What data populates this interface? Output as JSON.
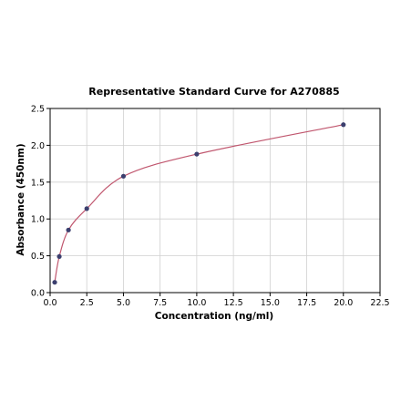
{
  "chart_data": {
    "type": "scatter",
    "title": "Representative Standard Curve for A270885",
    "xlabel": "Concentration (ng/ml)",
    "ylabel": "Absorbance (450nm)",
    "xlim": [
      0,
      22.5
    ],
    "ylim": [
      0,
      2.5
    ],
    "x_ticks": [
      "0.0",
      "2.5",
      "5.0",
      "7.5",
      "10.0",
      "12.5",
      "15.0",
      "17.5",
      "20.0",
      "22.5"
    ],
    "y_ticks": [
      "0.0",
      "0.5",
      "1.0",
      "1.5",
      "2.0",
      "2.5"
    ],
    "grid": true,
    "series": [
      {
        "x": [
          0.313,
          0.625,
          1.25,
          2.5,
          5.0,
          10.0,
          20.0
        ],
        "y": [
          0.14,
          0.49,
          0.85,
          1.14,
          1.58,
          1.88,
          2.28
        ],
        "fit_curve": true
      }
    ],
    "colors": {
      "points": "#3b3f6e",
      "curve": "#c0566e",
      "grid": "#d0d0d0"
    }
  }
}
